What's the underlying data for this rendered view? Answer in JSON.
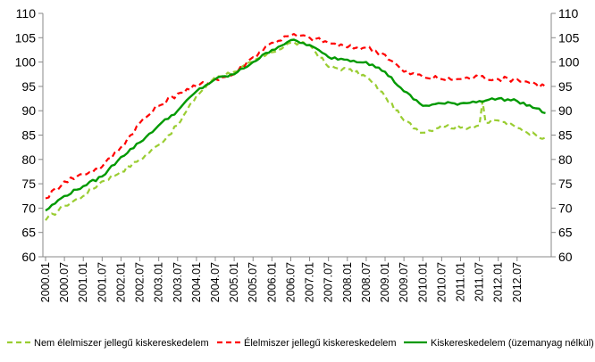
{
  "chart_data": {
    "type": "line",
    "title": "",
    "xlabel": "",
    "ylabel": "",
    "ylim": [
      60,
      110
    ],
    "yticks": [
      60,
      65,
      70,
      75,
      80,
      85,
      90,
      95,
      100,
      105,
      110
    ],
    "grid": false,
    "legend_position": "bottom",
    "x_labels": [
      "2000.01",
      "2000.07",
      "2001.01",
      "2001.07",
      "2002.01",
      "2002.07",
      "2003.01",
      "2003.07",
      "2004.01",
      "2004.07",
      "2005.01",
      "2005.07",
      "2006.01",
      "2006.07",
      "2007.01",
      "2007.07",
      "2008.01",
      "2008.07",
      "2009.01",
      "2009.07",
      "2010.01",
      "2010.07",
      "2011.01",
      "2011.07",
      "2012.01",
      "2012.07"
    ],
    "series": [
      {
        "name": "Nem élelmiszer jellegű kiskereskedelem",
        "color": "#9acd32",
        "style": "dashed",
        "points": [
          [
            0,
            67.5
          ],
          [
            6,
            70.5
          ],
          [
            12,
            72.5
          ],
          [
            18,
            75.5
          ],
          [
            24,
            77.5
          ],
          [
            30,
            80
          ],
          [
            36,
            83
          ],
          [
            42,
            87
          ],
          [
            48,
            93
          ],
          [
            54,
            97
          ],
          [
            60,
            98
          ],
          [
            66,
            100
          ],
          [
            72,
            102
          ],
          [
            78,
            104
          ],
          [
            84,
            103.5
          ],
          [
            90,
            99
          ],
          [
            96,
            98.5
          ],
          [
            102,
            97
          ],
          [
            108,
            93
          ],
          [
            114,
            88
          ],
          [
            120,
            85.5
          ],
          [
            126,
            87
          ],
          [
            132,
            86.5
          ],
          [
            138,
            87
          ],
          [
            139,
            92
          ],
          [
            140,
            87.5
          ],
          [
            144,
            88
          ],
          [
            150,
            86.5
          ],
          [
            156,
            85
          ],
          [
            159,
            84.5
          ]
        ]
      },
      {
        "name": "Élelmiszer jellegű kiskereskedelem",
        "color": "#ff0000",
        "style": "dashed",
        "points": [
          [
            0,
            72
          ],
          [
            6,
            75.5
          ],
          [
            12,
            77
          ],
          [
            18,
            78.5
          ],
          [
            24,
            82.5
          ],
          [
            30,
            87.5
          ],
          [
            36,
            91
          ],
          [
            42,
            93.5
          ],
          [
            48,
            95
          ],
          [
            54,
            96.5
          ],
          [
            60,
            97.5
          ],
          [
            66,
            101
          ],
          [
            72,
            104
          ],
          [
            78,
            105.5
          ],
          [
            84,
            105
          ],
          [
            90,
            104
          ],
          [
            96,
            103
          ],
          [
            102,
            103
          ],
          [
            108,
            101.5
          ],
          [
            114,
            98
          ],
          [
            120,
            97
          ],
          [
            126,
            96.5
          ],
          [
            132,
            96.5
          ],
          [
            138,
            97
          ],
          [
            144,
            96.5
          ],
          [
            150,
            96.5
          ],
          [
            156,
            95.5
          ],
          [
            159,
            95
          ]
        ]
      },
      {
        "name": "Kiskereskedelem (üzemanyag nélkül)",
        "color": "#009900",
        "style": "solid",
        "points": [
          [
            0,
            69.5
          ],
          [
            6,
            72.5
          ],
          [
            12,
            74.5
          ],
          [
            18,
            76.5
          ],
          [
            24,
            80.5
          ],
          [
            30,
            83.5
          ],
          [
            36,
            87
          ],
          [
            42,
            90
          ],
          [
            48,
            94
          ],
          [
            54,
            96.5
          ],
          [
            60,
            97.5
          ],
          [
            66,
            100
          ],
          [
            72,
            102.5
          ],
          [
            78,
            104.5
          ],
          [
            84,
            103.5
          ],
          [
            90,
            101
          ],
          [
            96,
            100.5
          ],
          [
            102,
            100
          ],
          [
            108,
            98
          ],
          [
            114,
            94
          ],
          [
            120,
            91
          ],
          [
            126,
            91.5
          ],
          [
            132,
            91.5
          ],
          [
            138,
            92
          ],
          [
            144,
            92.5
          ],
          [
            150,
            92
          ],
          [
            156,
            90.5
          ],
          [
            159,
            89.5
          ]
        ]
      }
    ]
  }
}
